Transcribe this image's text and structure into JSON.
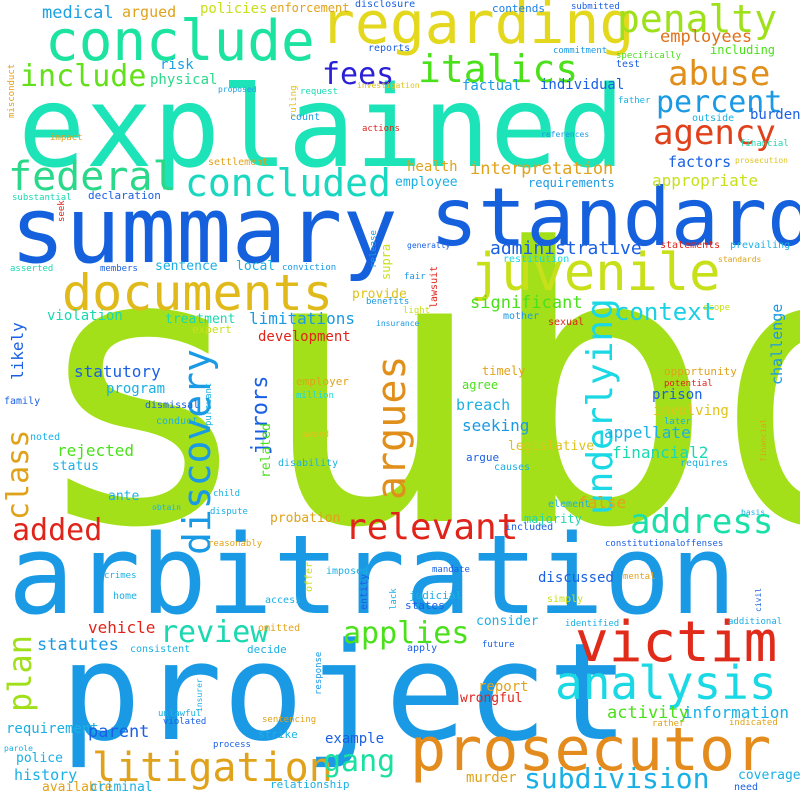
{
  "words": [
    {
      "text": "subd",
      "color": "#a4e01a"
    },
    {
      "text": "explained",
      "color": "#1de3b8"
    },
    {
      "text": "arbitration",
      "color": "#1a9ae4"
    },
    {
      "text": "project",
      "color": "#1a9ae4"
    },
    {
      "text": "summary",
      "color": "#1560dd"
    },
    {
      "text": "standard",
      "color": "#1560dd"
    },
    {
      "text": "regarding",
      "color": "#e3d81d"
    },
    {
      "text": "conclude",
      "color": "#1de3a0"
    },
    {
      "text": "prosecutor",
      "color": "#e38c1d"
    },
    {
      "text": "victim",
      "color": "#e02a1a"
    },
    {
      "text": "juvenile",
      "color": "#c8e01a"
    },
    {
      "text": "documents",
      "color": "#e0b91a"
    },
    {
      "text": "analysis",
      "color": "#1ad8e4"
    },
    {
      "text": "federal",
      "color": "#2ad88a"
    },
    {
      "text": "concluded",
      "color": "#1ad8c0"
    },
    {
      "text": "penalty",
      "color": "#9ee01a"
    },
    {
      "text": "italics",
      "color": "#4ae01a"
    },
    {
      "text": "abuse",
      "color": "#e0901a"
    },
    {
      "text": "agency",
      "color": "#e0401a"
    },
    {
      "text": "percent",
      "color": "#1a9ae4"
    },
    {
      "text": "fees",
      "color": "#2a20d8"
    },
    {
      "text": "include",
      "color": "#64e01a"
    },
    {
      "text": "argues",
      "color": "#e0901a"
    },
    {
      "text": "relevant",
      "color": "#e0241a"
    },
    {
      "text": "address",
      "color": "#1ae0a8"
    },
    {
      "text": "discovery",
      "color": "#1a9ae4"
    },
    {
      "text": "underlying",
      "color": "#1ad8e4"
    },
    {
      "text": "litigation",
      "color": "#e0a21a"
    },
    {
      "text": "subdivision",
      "color": "#1ab0e4"
    },
    {
      "text": "review",
      "color": "#1ad8b0"
    },
    {
      "text": "applies",
      "color": "#4ae01a"
    },
    {
      "text": "gang",
      "color": "#1ae0a0"
    },
    {
      "text": "added",
      "color": "#e0241a"
    },
    {
      "text": "plan",
      "color": "#a0e01a"
    },
    {
      "text": "class",
      "color": "#e0a21a"
    },
    {
      "text": "context",
      "color": "#1ad0e4"
    },
    {
      "text": "medical",
      "color": "#1aa0e4"
    },
    {
      "text": "argued",
      "color": "#e0a21a"
    },
    {
      "text": "policies",
      "color": "#c8e01a"
    },
    {
      "text": "enforcement",
      "color": "#e0a21a"
    },
    {
      "text": "contends",
      "color": "#1a80e4"
    },
    {
      "text": "submitted",
      "color": "#1a60e4"
    },
    {
      "text": "commitment",
      "color": "#1a9ae4"
    },
    {
      "text": "employees",
      "color": "#e0701a"
    },
    {
      "text": "including",
      "color": "#4ae01a"
    },
    {
      "text": "misconduct",
      "color": "#e0a21a"
    },
    {
      "text": "reports",
      "color": "#1a60e4"
    },
    {
      "text": "specifically",
      "color": "#4ae01a"
    },
    {
      "text": "test",
      "color": "#1a60e4"
    },
    {
      "text": "risk",
      "color": "#1aa0e4"
    },
    {
      "text": "physical",
      "color": "#2ad88a"
    },
    {
      "text": "factual",
      "color": "#1a9ae4"
    },
    {
      "text": "individual",
      "color": "#1a60e4"
    },
    {
      "text": "request",
      "color": "#1ad8b0"
    },
    {
      "text": "investigation",
      "color": "#e0c21a"
    },
    {
      "text": "father",
      "color": "#1ab0e4"
    },
    {
      "text": "outside",
      "color": "#1ab0e4"
    },
    {
      "text": "burden",
      "color": "#1a60e4"
    },
    {
      "text": "proposed",
      "color": "#1aa0e4"
    },
    {
      "text": "ruling",
      "color": "#e0c21a"
    },
    {
      "text": "count",
      "color": "#1a9ae4"
    },
    {
      "text": "actions",
      "color": "#e0241a"
    },
    {
      "text": "references",
      "color": "#1a9ae4"
    },
    {
      "text": "financial",
      "color": "#1ad8b0"
    },
    {
      "text": "impact",
      "color": "#e0a21a"
    },
    {
      "text": "factors",
      "color": "#1a60e4"
    },
    {
      "text": "prosecution",
      "color": "#e0c21a"
    },
    {
      "text": "disclosure",
      "color": "#1a60e4"
    },
    {
      "text": "settlement",
      "color": "#e0a21a"
    },
    {
      "text": "health",
      "color": "#e0a21a"
    },
    {
      "text": "interpretation",
      "color": "#e0a21a"
    },
    {
      "text": "substantial",
      "color": "#1ad8b0"
    },
    {
      "text": "declaration",
      "color": "#1a60e4"
    },
    {
      "text": "employee",
      "color": "#1ab0e4"
    },
    {
      "text": "requirements",
      "color": "#1a9ae4"
    },
    {
      "text": "appropriate",
      "color": "#c8e01a"
    },
    {
      "text": "seek",
      "color": "#e0241a"
    },
    {
      "text": "administrative",
      "color": "#1a60e4"
    },
    {
      "text": "generally",
      "color": "#1a60e4"
    },
    {
      "text": "statements",
      "color": "#e0241a"
    },
    {
      "text": "prevailing",
      "color": "#1ab0e4"
    },
    {
      "text": "release",
      "color": "#1a9ae4"
    },
    {
      "text": "supra",
      "color": "#c8e01a"
    },
    {
      "text": "restitution",
      "color": "#1ad8e4"
    },
    {
      "text": "standards",
      "color": "#e0a21a"
    },
    {
      "text": "asserted",
      "color": "#1ad8b0"
    },
    {
      "text": "members",
      "color": "#1a60e4"
    },
    {
      "text": "sentence",
      "color": "#1ab0e4"
    },
    {
      "text": "local",
      "color": "#1ab0e4"
    },
    {
      "text": "conviction",
      "color": "#1a9ae4"
    },
    {
      "text": "lawsuit",
      "color": "#e0241a"
    },
    {
      "text": "fair",
      "color": "#1a9ae4"
    },
    {
      "text": "provide",
      "color": "#e0c21a"
    },
    {
      "text": "benefits",
      "color": "#1a9ae4"
    },
    {
      "text": "light",
      "color": "#c8e01a"
    },
    {
      "text": "scope",
      "color": "#c8e01a"
    },
    {
      "text": "significant",
      "color": "#4ae01a"
    },
    {
      "text": "challenge",
      "color": "#1a9ae4"
    },
    {
      "text": "violation",
      "color": "#1ad8b0"
    },
    {
      "text": "limitations",
      "color": "#1a9ae4"
    },
    {
      "text": "insurance",
      "color": "#1a9ae4"
    },
    {
      "text": "mother",
      "color": "#1a9ae4"
    },
    {
      "text": "sexual",
      "color": "#e0241a"
    },
    {
      "text": "treatment",
      "color": "#1ad8b0"
    },
    {
      "text": "records",
      "color": "#1aa0e4"
    },
    {
      "text": "likely",
      "color": "#1a60e4"
    },
    {
      "text": "expert",
      "color": "#c8e01a"
    },
    {
      "text": "development",
      "color": "#e0241a"
    },
    {
      "text": "statutory",
      "color": "#1a60e4"
    },
    {
      "text": "jurors",
      "color": "#1a60e4"
    },
    {
      "text": "timely",
      "color": "#e0a21a"
    },
    {
      "text": "employer",
      "color": "#e0a21a"
    },
    {
      "text": "opportunity",
      "color": "#e0a21a"
    },
    {
      "text": "potential",
      "color": "#e0241a"
    },
    {
      "text": "program",
      "color": "#1ab0e4"
    },
    {
      "text": "agree",
      "color": "#4ae01a"
    },
    {
      "text": "prison",
      "color": "#1a60e4"
    },
    {
      "text": "family",
      "color": "#1a60e4"
    },
    {
      "text": "dismissal",
      "color": "#1a60e4"
    },
    {
      "text": "million",
      "color": "#1ad8e4"
    },
    {
      "text": "involving",
      "color": "#e0c21a"
    },
    {
      "text": "pursuant",
      "color": "#1ab0e4"
    },
    {
      "text": "appellate",
      "color": "#1ab0e4"
    },
    {
      "text": "breach",
      "color": "#1ab0e4"
    },
    {
      "text": "later",
      "color": "#1ab0e4"
    },
    {
      "text": "conduct",
      "color": "#1ab0e4"
    },
    {
      "text": "noted",
      "color": "#1ab0e4"
    },
    {
      "text": "rejected",
      "color": "#4ae01a"
    },
    {
      "text": "related",
      "color": "#4ae01a"
    },
    {
      "text": "seeking",
      "color": "#1a9ae4"
    },
    {
      "text": "financial2",
      "color": "#1ad8b0"
    },
    {
      "text": "private",
      "color": "#e0a21a"
    },
    {
      "text": "award",
      "color": "#e0c21a"
    },
    {
      "text": "legislative",
      "color": "#e0c21a"
    },
    {
      "text": "requires",
      "color": "#1ab0e4"
    },
    {
      "text": "status",
      "color": "#1ab0e4"
    },
    {
      "text": "disability",
      "color": "#1ab0e4"
    },
    {
      "text": "argue",
      "color": "#1a60e4"
    },
    {
      "text": "causes",
      "color": "#1ab0e4"
    },
    {
      "text": "false",
      "color": "#e0a21a"
    },
    {
      "text": "child",
      "color": "#1ab0e4"
    },
    {
      "text": "element",
      "color": "#1ab0e4"
    },
    {
      "text": "basis",
      "color": "#1ab0e4"
    },
    {
      "text": "ante",
      "color": "#1ab0e4"
    },
    {
      "text": "obtain",
      "color": "#1ab0e4"
    },
    {
      "text": "dispute",
      "color": "#1ab0e4"
    },
    {
      "text": "probation",
      "color": "#e0a21a"
    },
    {
      "text": "majority",
      "color": "#1ad8b0"
    },
    {
      "text": "included",
      "color": "#1a60e4"
    },
    {
      "text": "constitutional",
      "color": "#1a60e4"
    },
    {
      "text": "offenses",
      "color": "#1a60e4"
    },
    {
      "text": "reasonably",
      "color": "#e0a21a"
    },
    {
      "text": "offer",
      "color": "#c8e01a"
    },
    {
      "text": "imposed",
      "color": "#1ab0e4"
    },
    {
      "text": "crimes",
      "color": "#1ab0e4"
    },
    {
      "text": "entity",
      "color": "#1a60e4"
    },
    {
      "text": "discussed",
      "color": "#1a60e4"
    },
    {
      "text": "mandate",
      "color": "#1a60e4"
    },
    {
      "text": "lack",
      "color": "#1ab0e4"
    },
    {
      "text": "mental",
      "color": "#e0a21a"
    },
    {
      "text": "home",
      "color": "#1ab0e4"
    },
    {
      "text": "access",
      "color": "#1ab0e4"
    },
    {
      "text": "judicial",
      "color": "#1ab0e4"
    },
    {
      "text": "states",
      "color": "#1a60e4"
    },
    {
      "text": "simply",
      "color": "#c8e01a"
    },
    {
      "text": "civil",
      "color": "#1a60e4"
    },
    {
      "text": "vehicle",
      "color": "#e0241a"
    },
    {
      "text": "omitted",
      "color": "#e0a21a"
    },
    {
      "text": "statutes",
      "color": "#1a9ae4"
    },
    {
      "text": "decide",
      "color": "#1ab0e4"
    },
    {
      "text": "response",
      "color": "#1a9ae4"
    },
    {
      "text": "consider",
      "color": "#1ab0e4"
    },
    {
      "text": "identified",
      "color": "#1ab0e4"
    },
    {
      "text": "additional",
      "color": "#1ab0e4"
    },
    {
      "text": "consistent",
      "color": "#1ab0e4"
    },
    {
      "text": "apply",
      "color": "#1a60e4"
    },
    {
      "text": "future",
      "color": "#1a60e4"
    },
    {
      "text": "report",
      "color": "#e0a21a"
    },
    {
      "text": "wrongful",
      "color": "#e0241a"
    },
    {
      "text": "insurer",
      "color": "#1ab0e4"
    },
    {
      "text": "unlawful",
      "color": "#1ab0e4"
    },
    {
      "text": "violated",
      "color": "#1a60e4"
    },
    {
      "text": "activity",
      "color": "#4ae01a"
    },
    {
      "text": "information",
      "color": "#1ab0e4"
    },
    {
      "text": "rather",
      "color": "#e0a21a"
    },
    {
      "text": "requirement",
      "color": "#1ab0e4"
    },
    {
      "text": "parent",
      "color": "#1a60e4"
    },
    {
      "text": "example",
      "color": "#1a60e4"
    },
    {
      "text": "sentencing",
      "color": "#e0a21a"
    },
    {
      "text": "indicated",
      "color": "#e0a21a"
    },
    {
      "text": "parole",
      "color": "#1ab0e4"
    },
    {
      "text": "police",
      "color": "#1ab0e4"
    },
    {
      "text": "strike",
      "color": "#1ab0e4"
    },
    {
      "text": "process",
      "color": "#1a60e4"
    },
    {
      "text": "history",
      "color": "#1ab0e4"
    },
    {
      "text": "murder",
      "color": "#e0a21a"
    },
    {
      "text": "coverage",
      "color": "#1ab0e4"
    },
    {
      "text": "need",
      "color": "#1a60e4"
    },
    {
      "text": "available",
      "color": "#e0a21a"
    },
    {
      "text": "criminal",
      "color": "#1ab0e4"
    },
    {
      "text": "relationship",
      "color": "#1ab0e4"
    }
  ]
}
